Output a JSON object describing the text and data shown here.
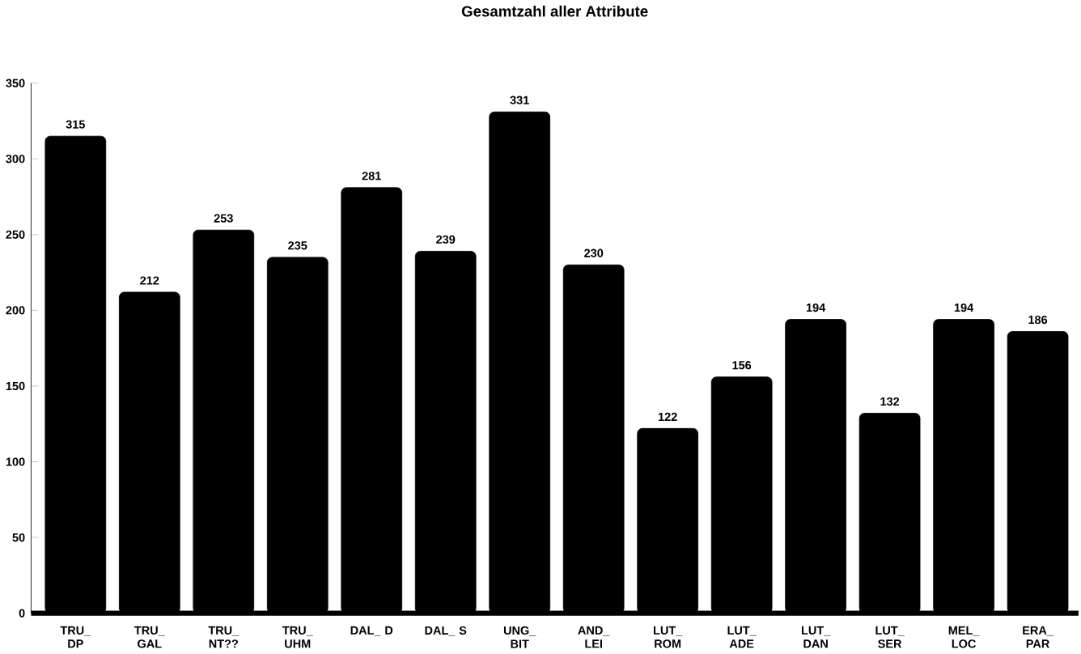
{
  "chart_data": {
    "type": "bar",
    "title": "Gesamtzahl aller Attribute",
    "categories": [
      "TRU_ DP",
      "TRU_ GAL",
      "TRU_ NT??",
      "TRU_ UHM",
      "DAL_ D",
      "DAL_ S",
      "UNG_ BIT",
      "AND_ LEI",
      "LUT_ ROM",
      "LUT_ ADE",
      "LUT_ DAN",
      "LUT_ SER",
      "MEL_ LOC",
      "ERA_ PAR"
    ],
    "values": [
      315,
      212,
      253,
      235,
      281,
      239,
      331,
      230,
      122,
      156,
      194,
      132,
      194,
      186
    ],
    "color": "#000000",
    "ylim": [
      0,
      350
    ],
    "yticks": [
      0,
      50,
      100,
      150,
      200,
      250,
      300,
      350
    ],
    "data_labels": true
  }
}
